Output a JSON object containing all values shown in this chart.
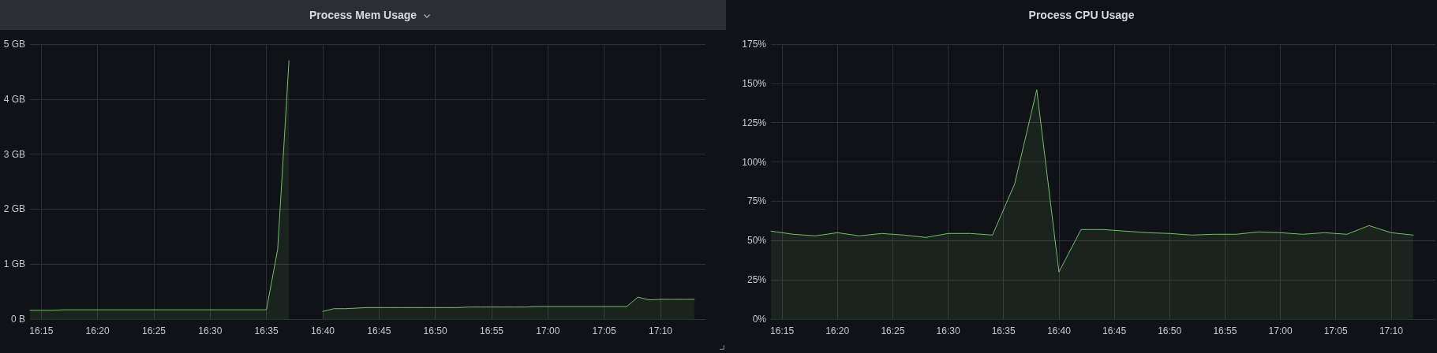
{
  "chart_data": [
    {
      "type": "area",
      "title": "Process Mem Usage",
      "color": "#73bf69",
      "x": [
        16.2333,
        16.25,
        16.2667,
        16.2833,
        16.3,
        16.3167,
        16.3333,
        16.35,
        16.3667,
        16.3833,
        16.4,
        16.4167,
        16.4333,
        16.45,
        16.4667,
        16.4833,
        16.5,
        16.5167,
        16.5333,
        16.55,
        16.5667,
        16.5833,
        16.6,
        16.6167,
        16.6333,
        16.65,
        16.6667,
        16.6833,
        16.7,
        16.7167,
        16.7333,
        16.75,
        16.7667,
        16.7833,
        16.8,
        16.8167,
        16.8333,
        16.85,
        16.8667,
        16.8833,
        16.9,
        16.9167,
        16.9333,
        16.95,
        16.9667,
        16.9833,
        17,
        17.0167,
        17.0333,
        17.05,
        17.0667,
        17.0833,
        17.1,
        17.1167,
        17.1333,
        17.15,
        17.1667,
        17.1833,
        17.2,
        17.2167
      ],
      "values": [
        0.16,
        0.16,
        0.16,
        0.17,
        0.17,
        0.17,
        0.17,
        0.17,
        0.17,
        0.17,
        0.17,
        0.17,
        0.17,
        0.17,
        0.17,
        0.17,
        0.17,
        0.17,
        0.17,
        0.17,
        0.17,
        0.17,
        1.27,
        4.7,
        null,
        null,
        0.14,
        0.19,
        0.19,
        0.2,
        0.21,
        0.21,
        0.21,
        0.21,
        0.21,
        0.21,
        0.21,
        0.21,
        0.21,
        0.22,
        0.22,
        0.22,
        0.22,
        0.22,
        0.22,
        0.23,
        0.23,
        0.23,
        0.23,
        0.23,
        0.23,
        0.23,
        0.23,
        0.23,
        0.4,
        0.35,
        0.36,
        0.36,
        0.36,
        0.36
      ],
      "xlim": [
        16.2333,
        17.2333
      ],
      "xticks": [
        {
          "value": 16.25,
          "label": "16:15"
        },
        {
          "value": 16.3333,
          "label": "16:20"
        },
        {
          "value": 16.4167,
          "label": "16:25"
        },
        {
          "value": 16.5,
          "label": "16:30"
        },
        {
          "value": 16.5833,
          "label": "16:35"
        },
        {
          "value": 16.6667,
          "label": "16:40"
        },
        {
          "value": 16.75,
          "label": "16:45"
        },
        {
          "value": 16.8333,
          "label": "16:50"
        },
        {
          "value": 16.9167,
          "label": "16:55"
        },
        {
          "value": 17,
          "label": "17:00"
        },
        {
          "value": 17.0833,
          "label": "17:05"
        },
        {
          "value": 17.1667,
          "label": "17:10"
        }
      ],
      "ylim": [
        0,
        5
      ],
      "yticks": [
        {
          "value": 0,
          "label": "0 B"
        },
        {
          "value": 1,
          "label": "1 GB"
        },
        {
          "value": 2,
          "label": "2 GB"
        },
        {
          "value": 3,
          "label": "3 GB"
        },
        {
          "value": 4,
          "label": "4 GB"
        },
        {
          "value": 5,
          "label": "5 GB"
        }
      ],
      "grid": true
    },
    {
      "type": "area",
      "title": "Process CPU Usage",
      "color": "#73bf69",
      "x": [
        16.2333,
        16.2667,
        16.3,
        16.3333,
        16.3667,
        16.4,
        16.4333,
        16.4667,
        16.5,
        16.5333,
        16.5667,
        16.6,
        16.6333,
        16.6667,
        16.7,
        16.7333,
        16.7667,
        16.8,
        16.8333,
        16.8667,
        16.9,
        16.9333,
        16.9667,
        17,
        17.0333,
        17.0667,
        17.1,
        17.1333,
        17.1667,
        17.2
      ],
      "values": [
        56,
        54,
        53,
        55,
        53,
        54.5,
        53.5,
        52,
        54.5,
        54.5,
        53.5,
        86,
        146,
        30,
        57,
        57,
        56,
        55,
        54.5,
        53.5,
        54,
        54,
        55.5,
        55,
        54,
        55,
        54,
        59.5,
        55,
        53.5
      ],
      "xlim": [
        16.2333,
        17.2333
      ],
      "xticks": [
        {
          "value": 16.25,
          "label": "16:15"
        },
        {
          "value": 16.3333,
          "label": "16:20"
        },
        {
          "value": 16.4167,
          "label": "16:25"
        },
        {
          "value": 16.5,
          "label": "16:30"
        },
        {
          "value": 16.5833,
          "label": "16:35"
        },
        {
          "value": 16.6667,
          "label": "16:40"
        },
        {
          "value": 16.75,
          "label": "16:45"
        },
        {
          "value": 16.8333,
          "label": "16:50"
        },
        {
          "value": 16.9167,
          "label": "16:55"
        },
        {
          "value": 17,
          "label": "17:00"
        },
        {
          "value": 17.0833,
          "label": "17:05"
        },
        {
          "value": 17.1667,
          "label": "17:10"
        }
      ],
      "ylim": [
        0,
        175
      ],
      "yticks": [
        {
          "value": 0,
          "label": "0%"
        },
        {
          "value": 25,
          "label": "25%"
        },
        {
          "value": 50,
          "label": "50%"
        },
        {
          "value": 75,
          "label": "75%"
        },
        {
          "value": 100,
          "label": "100%"
        },
        {
          "value": 125,
          "label": "125%"
        },
        {
          "value": 150,
          "label": "150%"
        },
        {
          "value": 175,
          "label": "175%"
        }
      ],
      "grid": true
    }
  ]
}
